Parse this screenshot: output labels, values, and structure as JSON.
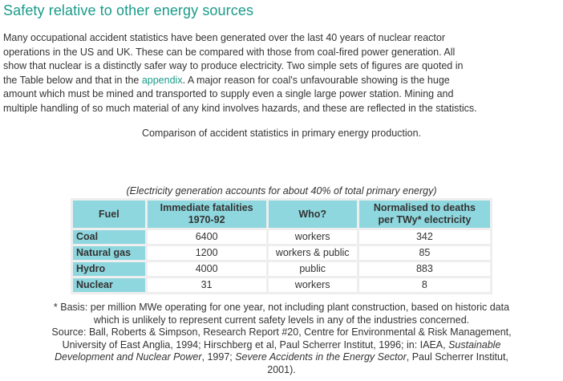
{
  "heading": "Safety relative to other energy sources",
  "intro": {
    "line1": "Many occupational accident statistics have been generated over the last 40 years of nuclear reactor",
    "line2": "operations in the US and UK. These can be compared with those from coal-fired power generation. All",
    "line3": "show that nuclear is a distinctly safer way to produce electricity. Two simple sets of figures are quoted in",
    "line4_before": "the Table below and that in the ",
    "link_text": "appendix",
    "line4_after": ". A major reason for coal's unfavourable showing is the huge",
    "line5": "amount which must be mined and transported to supply even a single large power station. Mining and",
    "line6": "multiple handling of so much material of any kind involves hazards, and these are reflected in the statistics."
  },
  "caption": "Comparison of accident statistics in primary energy production.",
  "table": {
    "note": "(Electricity generation accounts for about 40% of total primary energy)",
    "headers": {
      "fuel": "Fuel",
      "fatalities_1": "Immediate fatalities",
      "fatalities_2": "1970-92",
      "who": "Who?",
      "normalised_1": "Normalised to deaths",
      "normalised_2": "per TWy* electricity"
    },
    "rows": [
      {
        "fuel": "Coal",
        "fatalities": "6400",
        "who": "workers",
        "normalised": "342"
      },
      {
        "fuel": "Natural gas",
        "fatalities": "1200",
        "who": "workers & public",
        "normalised": "85"
      },
      {
        "fuel": "Hydro",
        "fatalities": "4000",
        "who": "public",
        "normalised": "883"
      },
      {
        "fuel": "Nuclear",
        "fatalities": "31",
        "who": "workers",
        "normalised": "8"
      }
    ]
  },
  "footnote": {
    "basis_1": "* Basis: per million MWe operating for one year, not including plant construction, based on historic data",
    "basis_2": "which is unlikely to represent current safety levels in any of the industries concerned.",
    "source_1": "Source: Ball, Roberts & Simpson, Research Report #20, Centre for Environmental & Risk Management,",
    "source_2_before": "University of East Anglia, 1994; Hirschberg et al, Paul Scherrer Institut, 1996; in: IAEA, ",
    "source_2_italic": "Sustainable",
    "source_3_italic_a": "Development and Nuclear Power",
    "source_3_mid": ", 1997; ",
    "source_3_italic_b": "Severe Accidents in the Energy Sector",
    "source_3_after": ", Paul Scherrer Institut,",
    "source_4": "2001)."
  },
  "colors": {
    "heading": "#1a9b8a",
    "link": "#1a9b8a",
    "table_header_bg": "#8ed7de",
    "table_border": "#eeeeee",
    "text": "#333333"
  }
}
